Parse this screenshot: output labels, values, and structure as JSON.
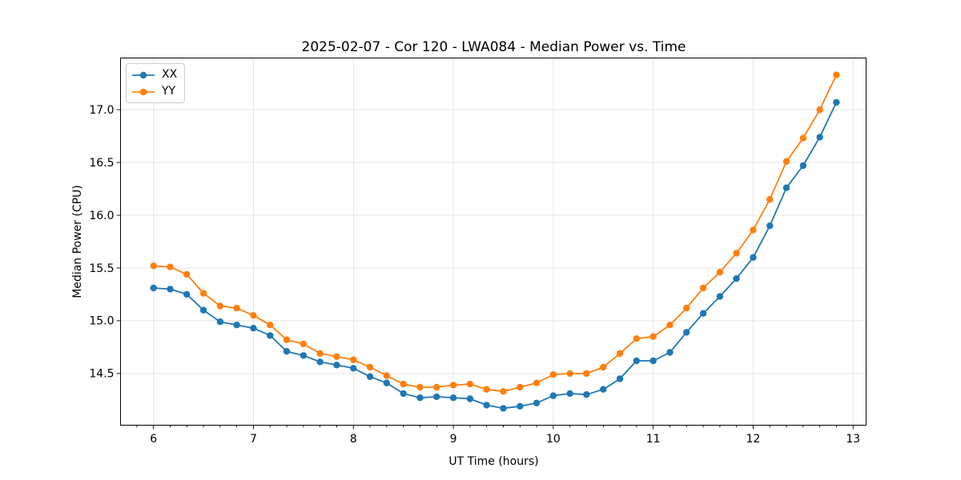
{
  "chart_data": {
    "type": "line",
    "title": "2025-02-07 - Cor 120 - LWA084 - Median Power vs. Time",
    "xlabel": "UT Time (hours)",
    "ylabel": "Median Power (CPU)",
    "x": [
      6.0,
      6.167,
      6.333,
      6.5,
      6.667,
      6.833,
      7.0,
      7.167,
      7.333,
      7.5,
      7.667,
      7.833,
      8.0,
      8.167,
      8.333,
      8.5,
      8.667,
      8.833,
      9.0,
      9.167,
      9.333,
      9.5,
      9.667,
      9.833,
      10.0,
      10.167,
      10.333,
      10.5,
      10.667,
      10.833,
      11.0,
      11.167,
      11.333,
      11.5,
      11.667,
      11.833,
      12.0,
      12.167,
      12.333,
      12.5,
      12.667,
      12.833
    ],
    "series": [
      {
        "name": "XX",
        "color": "#1f77b4",
        "values": [
          15.31,
          15.3,
          15.25,
          15.1,
          14.99,
          14.96,
          14.93,
          14.86,
          14.71,
          14.67,
          14.61,
          14.58,
          14.55,
          14.47,
          14.41,
          14.31,
          14.27,
          14.28,
          14.27,
          14.26,
          14.2,
          14.17,
          14.19,
          14.22,
          14.29,
          14.31,
          14.3,
          14.35,
          14.45,
          14.62,
          14.62,
          14.7,
          14.89,
          15.07,
          15.23,
          15.4,
          15.6,
          15.9,
          16.26,
          16.47,
          16.74,
          17.07
        ]
      },
      {
        "name": "YY",
        "color": "#ff7f0e",
        "values": [
          15.52,
          15.51,
          15.44,
          15.26,
          15.14,
          15.12,
          15.05,
          14.96,
          14.82,
          14.78,
          14.69,
          14.66,
          14.63,
          14.56,
          14.48,
          14.4,
          14.37,
          14.37,
          14.39,
          14.4,
          14.35,
          14.33,
          14.37,
          14.41,
          14.49,
          14.5,
          14.5,
          14.56,
          14.69,
          14.83,
          14.85,
          14.96,
          15.12,
          15.31,
          15.46,
          15.64,
          15.86,
          16.15,
          16.51,
          16.73,
          17.0,
          17.33
        ]
      }
    ],
    "xlim": [
      5.67,
      13.13
    ],
    "ylim": [
      14.01,
      17.49
    ],
    "xticks": [
      6,
      7,
      8,
      9,
      10,
      11,
      12,
      13
    ],
    "xtick_labels": [
      "6",
      "7",
      "8",
      "9",
      "10",
      "11",
      "12",
      "13"
    ],
    "yticks": [
      14.5,
      15.0,
      15.5,
      16.0,
      16.5,
      17.0
    ],
    "ytick_labels": [
      "14.5",
      "15.0",
      "15.5",
      "16.0",
      "16.5",
      "17.0"
    ],
    "x_minor_step": 0.166667,
    "grid": true,
    "grid_color": "#e5e5e5",
    "marker": "o",
    "legend_position": "upper left"
  }
}
